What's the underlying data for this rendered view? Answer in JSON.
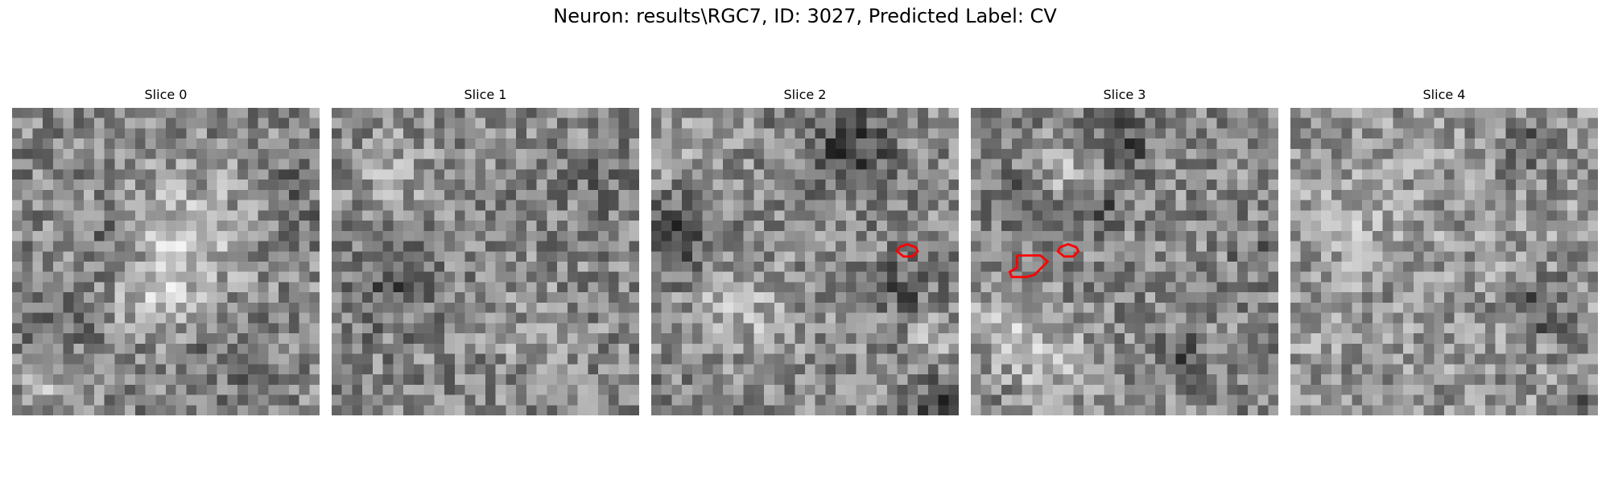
{
  "figure": {
    "suptitle": "Neuron: results\\RGC7, ID: 3027, Predicted Label: CV"
  },
  "colors": {
    "contour": "#ff0000",
    "background": "#ffffff"
  },
  "slices": [
    {
      "title": "Slice 0",
      "seed": 11,
      "contour_count": 0
    },
    {
      "title": "Slice 1",
      "seed": 23,
      "contour_count": 0
    },
    {
      "title": "Slice 2",
      "seed": 37,
      "contour_count": 1
    },
    {
      "title": "Slice 3",
      "seed": 53,
      "contour_count": 2
    },
    {
      "title": "Slice 4",
      "seed": 71,
      "contour_count": 0
    }
  ]
}
